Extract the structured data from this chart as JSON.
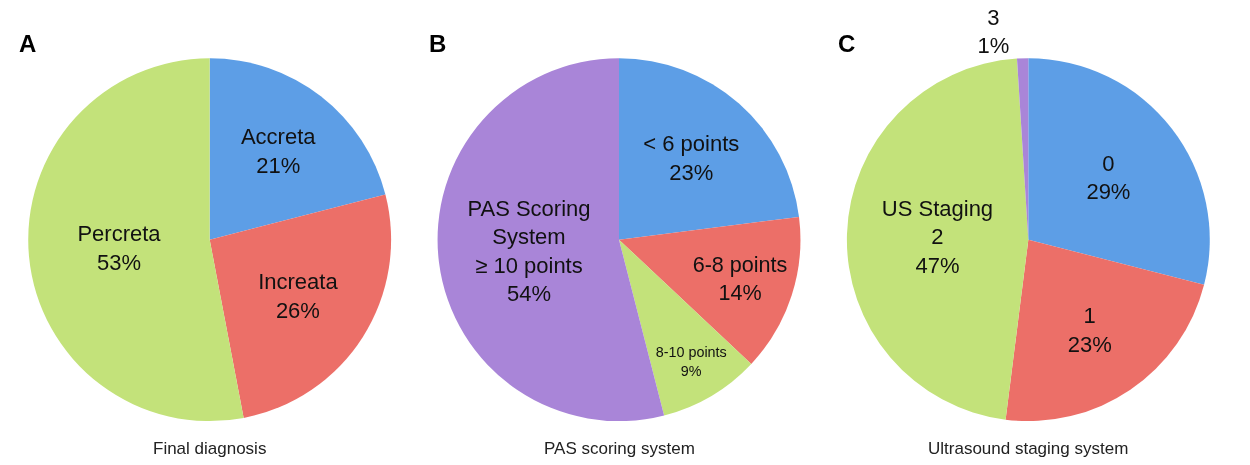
{
  "chart_data": [
    {
      "type": "pie",
      "title": "Final diagnosis",
      "annotations": [
        "A"
      ],
      "categories": [
        "Accreta",
        "Increata",
        "Percreta"
      ],
      "values": [
        21,
        26,
        53
      ],
      "value_labels": [
        "21%",
        "26%",
        "53%"
      ],
      "colors": [
        "#5d9ee6",
        "#ec6f68",
        "#c3e27a"
      ]
    },
    {
      "type": "pie",
      "title": "PAS scoring system",
      "annotations": [
        "B"
      ],
      "categories": [
        "< 6 points",
        "6-8 points",
        "8-10 points",
        "PAS Scoring\nSystem\n≥ 10 points"
      ],
      "values": [
        23,
        14,
        9,
        54
      ],
      "value_labels": [
        "23%",
        "14%",
        "9%",
        "54%"
      ],
      "colors": [
        "#5d9ee6",
        "#ec6f68",
        "#c3e27a",
        "#a985d8"
      ]
    },
    {
      "type": "pie",
      "title": "Ultrasound staging system",
      "annotations": [
        "C"
      ],
      "categories": [
        "0",
        "1",
        "US Staging\n2",
        "3"
      ],
      "values": [
        29,
        23,
        47,
        1
      ],
      "value_labels": [
        "29%",
        "23%",
        "47%",
        "1%"
      ],
      "colors": [
        "#5d9ee6",
        "#ec6f68",
        "#c3e27a",
        "#a985d8"
      ]
    }
  ]
}
